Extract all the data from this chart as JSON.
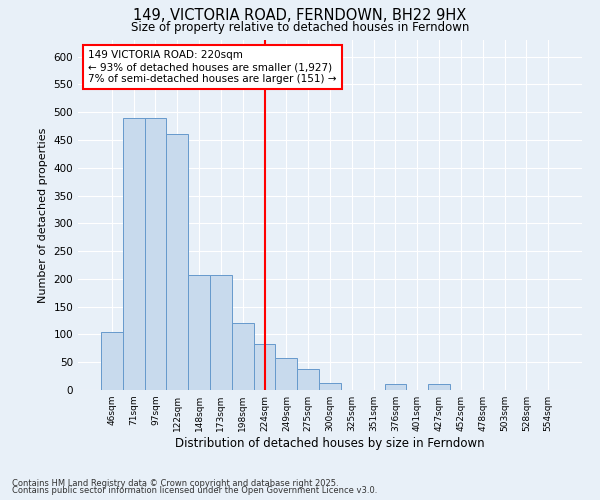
{
  "title": "149, VICTORIA ROAD, FERNDOWN, BH22 9HX",
  "subtitle": "Size of property relative to detached houses in Ferndown",
  "xlabel": "Distribution of detached houses by size in Ferndown",
  "ylabel": "Number of detached properties",
  "footer_line1": "Contains HM Land Registry data © Crown copyright and database right 2025.",
  "footer_line2": "Contains public sector information licensed under the Open Government Licence v3.0.",
  "bar_color": "#c8daed",
  "bar_edge_color": "#6699cc",
  "highlight_line_color": "red",
  "annotation_title": "149 VICTORIA ROAD: 220sqm",
  "annotation_line1": "← 93% of detached houses are smaller (1,927)",
  "annotation_line2": "7% of semi-detached houses are larger (151) →",
  "categories": [
    "46sqm",
    "71sqm",
    "97sqm",
    "122sqm",
    "148sqm",
    "173sqm",
    "198sqm",
    "224sqm",
    "249sqm",
    "275sqm",
    "300sqm",
    "325sqm",
    "351sqm",
    "376sqm",
    "401sqm",
    "427sqm",
    "452sqm",
    "478sqm",
    "503sqm",
    "528sqm",
    "554sqm"
  ],
  "values": [
    105,
    490,
    490,
    460,
    207,
    207,
    120,
    82,
    57,
    38,
    13,
    0,
    0,
    10,
    0,
    10,
    0,
    0,
    0,
    0,
    0
  ],
  "ylim": [
    0,
    630
  ],
  "yticks": [
    0,
    50,
    100,
    150,
    200,
    250,
    300,
    350,
    400,
    450,
    500,
    550,
    600
  ],
  "background_color": "#e8f0f8",
  "grid_color": "white"
}
